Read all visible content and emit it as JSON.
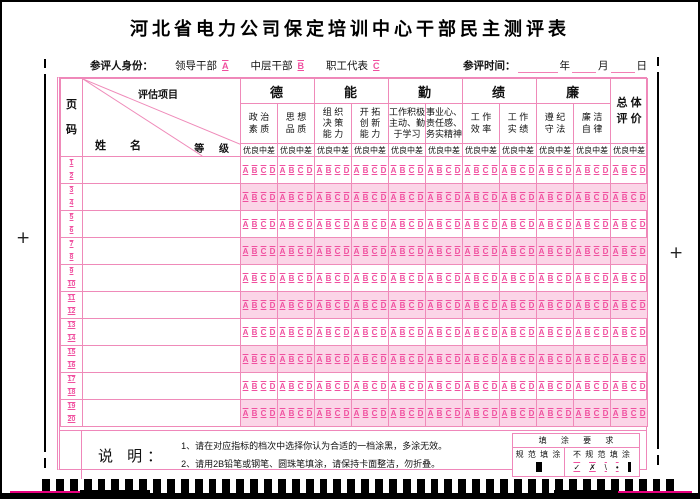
{
  "title": "河北省电力公司保定培训中心干部民主测评表",
  "identity": {
    "label": "参评人身份：",
    "options": [
      {
        "text": "领导干部",
        "code": "A"
      },
      {
        "text": "中层干部",
        "code": "B"
      },
      {
        "text": "职工代表",
        "code": "C"
      }
    ],
    "time_label": "参评时间：",
    "time_units": {
      "year": "年",
      "month": "月",
      "day": "日"
    }
  },
  "table": {
    "page_col_header": "页\n码",
    "corner": {
      "top": "评估项目",
      "left": "姓名",
      "right": "等 级"
    },
    "groups": [
      "德",
      "能",
      "勤",
      "绩",
      "廉"
    ],
    "overall_header": "总 体\n评 价",
    "criteria": [
      "政 治\n素 质",
      "思 想\n品 质",
      "组 织\n决 策\n能 力",
      "开 拓\n创 新\n能 力",
      "工作积极\n主动、勤\n于学习",
      "事业心、\n责任感、\n务实精神",
      "工 作\n效 率",
      "工 作\n实 绩",
      "遵 纪\n守 法",
      "廉 洁\n自 律"
    ],
    "grade_labels": [
      "优",
      "良",
      "中",
      "差"
    ],
    "bubble_letters": [
      "A",
      "B",
      "C",
      "D"
    ],
    "rows": [
      [
        "1",
        "2"
      ],
      [
        "3",
        "4"
      ],
      [
        "5",
        "6"
      ],
      [
        "7",
        "8"
      ],
      [
        "9",
        "10"
      ],
      [
        "11",
        "12"
      ],
      [
        "13",
        "14"
      ],
      [
        "15",
        "16"
      ],
      [
        "17",
        "18"
      ],
      [
        "19",
        "20"
      ]
    ]
  },
  "remark": {
    "label": "说 明：",
    "lines": "1、请在对应指标的档次中选择你认为合适的一档涂黑，多涂无效。\n2、请用2B铅笔或钢笔、圆珠笔填涂，请保持卡面整洁，勿折叠。"
  },
  "fill_req": {
    "title": "填 涂 要 求",
    "standard_label": "规 范 填 涂",
    "nonstandard_label": "不 规 范 填 涂",
    "nonstandard_marks": [
      "✓",
      "✗",
      "\\",
      "•"
    ]
  },
  "icons": {
    "reg_cross": "+"
  },
  "colors": {
    "line_pink": "#ef87ba",
    "bubble_pink": "#f0509f",
    "stripe_pink": "#fbd5e7",
    "accent_magenta": "#e8007e",
    "ink": "#111111"
  },
  "timing_marks_count": 46
}
